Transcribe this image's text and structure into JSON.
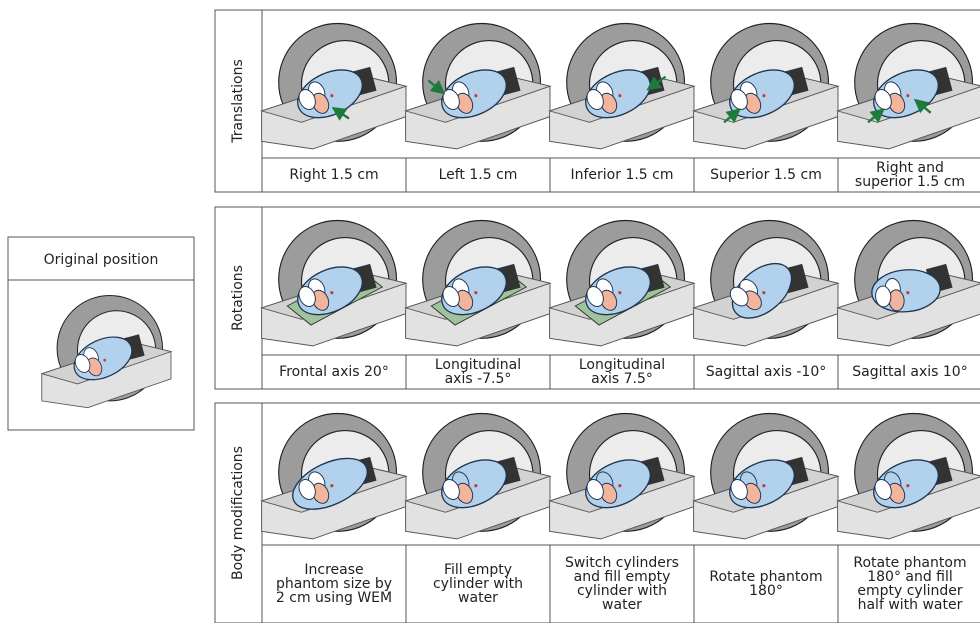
{
  "original": {
    "title": "Original position"
  },
  "groups": [
    {
      "name": "Translations",
      "cells": [
        {
          "label": [
            "Right 1.5 cm"
          ]
        },
        {
          "label": [
            "Left 1.5 cm"
          ]
        },
        {
          "label": [
            "Inferior 1.5 cm"
          ]
        },
        {
          "label": [
            "Superior 1.5 cm"
          ]
        },
        {
          "label": [
            "Right and",
            "superior 1.5 cm"
          ]
        }
      ]
    },
    {
      "name": "Rotations",
      "cells": [
        {
          "label": [
            "Frontal axis 20°"
          ]
        },
        {
          "label": [
            "Longitudinal",
            "axis -7.5°"
          ]
        },
        {
          "label": [
            "Longitudinal",
            "axis 7.5°"
          ]
        },
        {
          "label": [
            "Sagittal axis -10°"
          ]
        },
        {
          "label": [
            "Sagittal axis 10°"
          ]
        }
      ]
    },
    {
      "name": "Body modifications",
      "cells": [
        {
          "label": [
            "Increase",
            "phantom size by",
            "2 cm using WEM"
          ]
        },
        {
          "label": [
            "Fill empty",
            "cylinder with",
            "water"
          ]
        },
        {
          "label": [
            "Switch cylinders",
            "and fill empty",
            "cylinder with",
            "water"
          ]
        },
        {
          "label": [
            "Rotate phantom",
            "180°"
          ]
        },
        {
          "label": [
            "Rotate phantom",
            "180° and fill",
            "empty cylinder",
            "half with water"
          ]
        }
      ]
    }
  ]
}
